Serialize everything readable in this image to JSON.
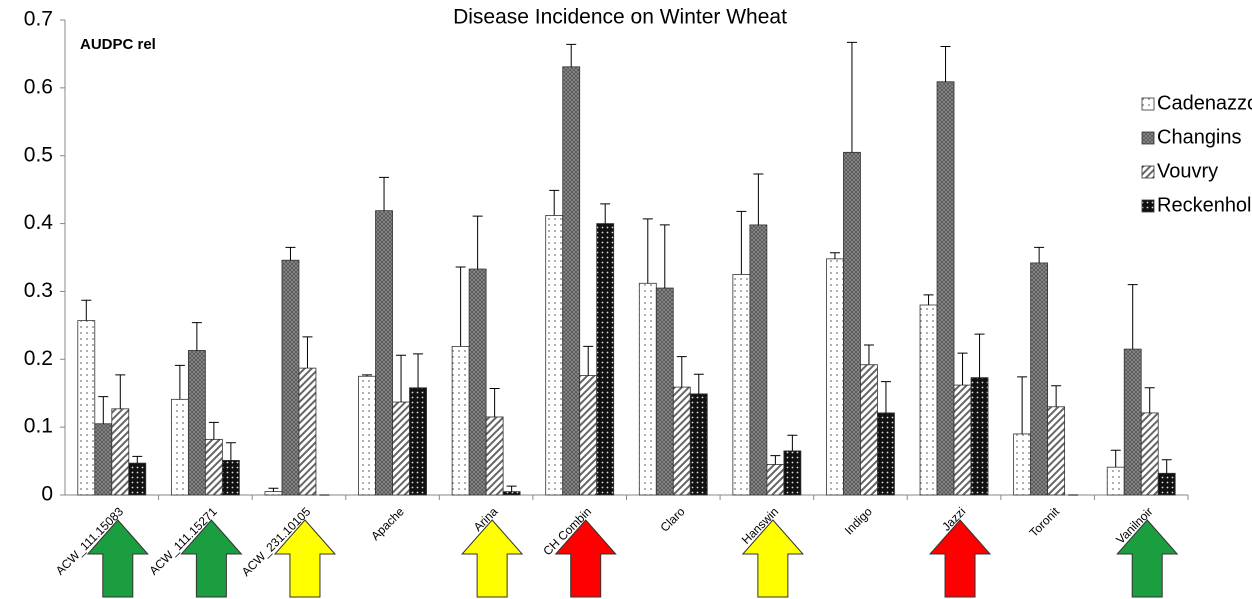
{
  "chart_data": {
    "type": "bar",
    "title": "Disease Incidence on Winter Wheat",
    "annotation": "AUDPC rel",
    "categories": [
      "ACW_111.15083",
      "ACW_111.15271",
      "ACW_231.10105",
      "Apache",
      "Arina",
      "CH Combin",
      "Claro",
      "Hanswin",
      "Indigo",
      "Jazzi",
      "Toronit",
      "Vanilnoir"
    ],
    "series": [
      {
        "name": "Cadenazzo",
        "color": "#ffffff",
        "pattern": "dots",
        "values": [
          0.257,
          0.141,
          0.005,
          0.175,
          0.219,
          0.412,
          0.312,
          0.325,
          0.348,
          0.28,
          0.09,
          0.041
        ],
        "errors": [
          0.03,
          0.05,
          0.005,
          0.002,
          0.117,
          0.037,
          0.095,
          0.093,
          0.009,
          0.015,
          0.084,
          0.025
        ]
      },
      {
        "name": "Changins",
        "color": "#8c8c8c",
        "pattern": "crosshatch",
        "values": [
          0.105,
          0.213,
          0.346,
          0.419,
          0.333,
          0.631,
          0.305,
          0.398,
          0.505,
          0.609,
          0.342,
          0.215
        ],
        "errors": [
          0.04,
          0.041,
          0.019,
          0.049,
          0.078,
          0.033,
          0.093,
          0.075,
          0.162,
          0.052,
          0.023,
          0.095
        ]
      },
      {
        "name": "Vouvry",
        "color": "#ffffff",
        "pattern": "stripes",
        "values": [
          0.127,
          0.082,
          0.187,
          0.137,
          0.115,
          0.176,
          0.159,
          0.045,
          0.192,
          0.162,
          0.13,
          0.121
        ],
        "errors": [
          0.05,
          0.025,
          0.046,
          0.069,
          0.042,
          0.043,
          0.045,
          0.013,
          0.029,
          0.047,
          0.031,
          0.037
        ]
      },
      {
        "name": "Reckenholz",
        "color": "#111111",
        "pattern": "darkdots",
        "values": [
          0.047,
          0.051,
          0,
          0.158,
          0.005,
          0.4,
          0.149,
          0.065,
          0.121,
          0.173,
          0,
          0.032
        ],
        "errors": [
          0.01,
          0.026,
          0,
          0.05,
          0.008,
          0.029,
          0.029,
          0.023,
          0.046,
          0.064,
          0,
          0.02
        ]
      }
    ],
    "arrow_colors": [
      "#1a9e3f",
      "#1a9e3f",
      "#ffff00",
      null,
      "#ffff00",
      "#ff0000",
      null,
      "#ffff00",
      null,
      "#ff0000",
      null,
      "#1a9e3f"
    ],
    "ylim": [
      0,
      0.7
    ],
    "yticks": [
      0,
      0.1,
      0.2,
      0.3,
      0.4,
      0.5,
      0.6,
      0.7
    ],
    "grid": false,
    "legend": "right"
  }
}
